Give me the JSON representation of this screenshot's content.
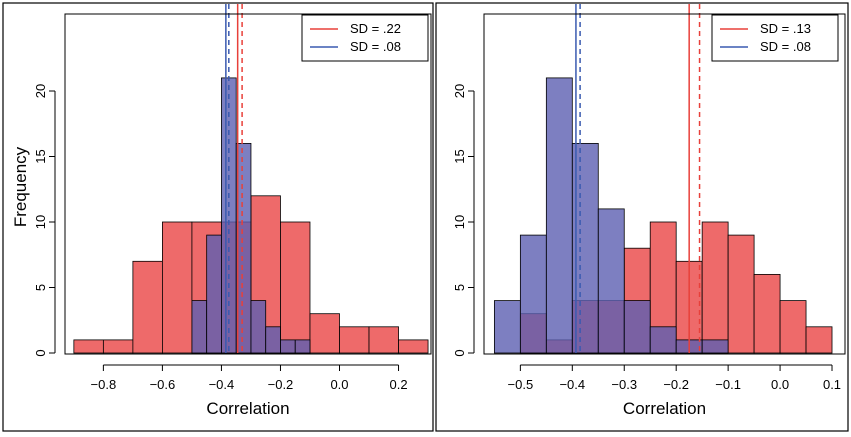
{
  "chart_data": [
    {
      "type": "histogram",
      "xlabel": "Correlation",
      "ylabel": "Frequency",
      "xlim": [
        -0.93,
        0.31
      ],
      "ylim": [
        0,
        23
      ],
      "xticks": [
        "−0.8",
        "−0.6",
        "−0.4",
        "−0.2",
        "0.0",
        "0.2"
      ],
      "xtick_values": [
        -0.8,
        -0.6,
        -0.4,
        -0.2,
        0.0,
        0.2
      ],
      "yticks": [
        "0",
        "5",
        "10",
        "15",
        "20"
      ],
      "ytick_values": [
        0,
        5,
        10,
        15,
        20
      ],
      "legend_position": "top-right",
      "series": [
        {
          "name": "SD = .22",
          "color": "#e8403a",
          "fill": "#ee6a6a",
          "bins": [
            {
              "x0": -0.9,
              "x1": -0.8,
              "count": 1
            },
            {
              "x0": -0.8,
              "x1": -0.7,
              "count": 1
            },
            {
              "x0": -0.7,
              "x1": -0.6,
              "count": 7
            },
            {
              "x0": -0.6,
              "x1": -0.5,
              "count": 10
            },
            {
              "x0": -0.5,
              "x1": -0.4,
              "count": 10
            },
            {
              "x0": -0.4,
              "x1": -0.3,
              "count": 10
            },
            {
              "x0": -0.3,
              "x1": -0.2,
              "count": 12
            },
            {
              "x0": -0.2,
              "x1": -0.1,
              "count": 10
            },
            {
              "x0": -0.1,
              "x1": 0.0,
              "count": 3
            },
            {
              "x0": 0.0,
              "x1": 0.1,
              "count": 2
            },
            {
              "x0": 0.1,
              "x1": 0.2,
              "count": 2
            },
            {
              "x0": 0.2,
              "x1": 0.3,
              "count": 1
            }
          ],
          "mean_line": -0.33,
          "median_line": -0.345
        },
        {
          "name": "SD = .08",
          "color": "#3a5ab0",
          "fill": "#5d5fb1",
          "bins": [
            {
              "x0": -0.5,
              "x1": -0.45,
              "count": 4
            },
            {
              "x0": -0.45,
              "x1": -0.4,
              "count": 9
            },
            {
              "x0": -0.4,
              "x1": -0.35,
              "count": 21
            },
            {
              "x0": -0.35,
              "x1": -0.3,
              "count": 16
            },
            {
              "x0": -0.3,
              "x1": -0.25,
              "count": 4
            },
            {
              "x0": -0.25,
              "x1": -0.2,
              "count": 2
            },
            {
              "x0": -0.2,
              "x1": -0.15,
              "count": 1
            },
            {
              "x0": -0.15,
              "x1": -0.1,
              "count": 1
            }
          ],
          "mean_line": -0.375,
          "median_line": -0.385
        }
      ]
    },
    {
      "type": "histogram",
      "xlabel": "Correlation",
      "ylabel": "",
      "xlim": [
        -0.57,
        0.125
      ],
      "ylim": [
        0,
        23
      ],
      "xticks": [
        "−0.5",
        "−0.4",
        "−0.3",
        "−0.2",
        "−0.1",
        "0.0",
        "0.1"
      ],
      "xtick_values": [
        -0.5,
        -0.4,
        -0.3,
        -0.2,
        -0.1,
        0.0,
        0.1
      ],
      "yticks": [
        "0",
        "5",
        "10",
        "15",
        "20"
      ],
      "ytick_values": [
        0,
        5,
        10,
        15,
        20
      ],
      "legend_position": "top-right",
      "series": [
        {
          "name": "SD = .13",
          "color": "#e8403a",
          "fill": "#ee6a6a",
          "bins": [
            {
              "x0": -0.5,
              "x1": -0.45,
              "count": 3
            },
            {
              "x0": -0.45,
              "x1": -0.4,
              "count": 1
            },
            {
              "x0": -0.4,
              "x1": -0.35,
              "count": 4
            },
            {
              "x0": -0.35,
              "x1": -0.3,
              "count": 4
            },
            {
              "x0": -0.3,
              "x1": -0.25,
              "count": 8
            },
            {
              "x0": -0.25,
              "x1": -0.2,
              "count": 10
            },
            {
              "x0": -0.2,
              "x1": -0.15,
              "count": 7
            },
            {
              "x0": -0.15,
              "x1": -0.1,
              "count": 10
            },
            {
              "x0": -0.1,
              "x1": -0.05,
              "count": 9
            },
            {
              "x0": -0.05,
              "x1": 0.0,
              "count": 6
            },
            {
              "x0": 0.0,
              "x1": 0.05,
              "count": 4
            },
            {
              "x0": 0.05,
              "x1": 0.1,
              "count": 2
            }
          ],
          "mean_line": -0.155,
          "median_line": -0.175
        },
        {
          "name": "SD = .08",
          "color": "#3a5ab0",
          "fill": "#5d5fb1",
          "bins": [
            {
              "x0": -0.55,
              "x1": -0.5,
              "count": 4
            },
            {
              "x0": -0.5,
              "x1": -0.45,
              "count": 9
            },
            {
              "x0": -0.45,
              "x1": -0.4,
              "count": 21
            },
            {
              "x0": -0.4,
              "x1": -0.35,
              "count": 16
            },
            {
              "x0": -0.35,
              "x1": -0.3,
              "count": 11
            },
            {
              "x0": -0.3,
              "x1": -0.25,
              "count": 4
            },
            {
              "x0": -0.25,
              "x1": -0.2,
              "count": 2
            },
            {
              "x0": -0.2,
              "x1": -0.15,
              "count": 1
            },
            {
              "x0": -0.15,
              "x1": -0.1,
              "count": 1
            }
          ],
          "mean_line": -0.385,
          "median_line": -0.393
        }
      ]
    }
  ]
}
